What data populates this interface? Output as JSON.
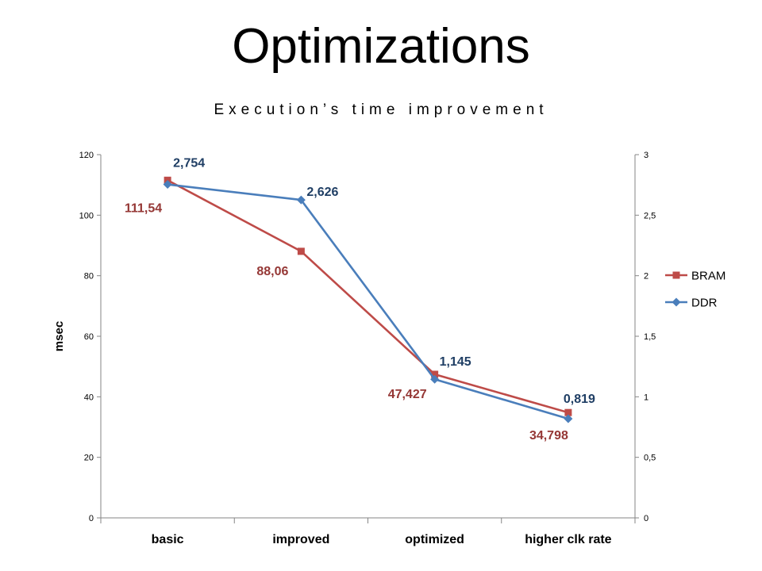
{
  "slide": {
    "title": "Optimizations",
    "subtitle": "Execution’s time improvement"
  },
  "colors": {
    "bram": "#BE4B48",
    "ddr": "#4A7EBB",
    "bram_label": "#953735",
    "ddr_label": "#1F3E64",
    "axis": "#868686"
  },
  "chart_data": {
    "type": "line",
    "categories": [
      "basic",
      "improved",
      "optimized",
      "higher clk rate"
    ],
    "ylabel": "msec",
    "ylim": [
      0,
      120
    ],
    "y_ticks": [
      "0",
      "20",
      "40",
      "60",
      "80",
      "100",
      "120"
    ],
    "y2lim": [
      0,
      3
    ],
    "y2_ticks": [
      "0",
      "0,5",
      "1",
      "1,5",
      "2",
      "2,5",
      "3"
    ],
    "grid": false,
    "legend_position": "right",
    "series": [
      {
        "name": "BRAM",
        "axis": "left",
        "marker": "square",
        "values": [
          111.54,
          88.06,
          47.427,
          34.798
        ],
        "labels": [
          "111,54",
          "88,06",
          "47,427",
          "34,798"
        ]
      },
      {
        "name": "DDR",
        "axis": "right",
        "marker": "diamond",
        "values": [
          2.754,
          2.626,
          1.145,
          0.819
        ],
        "labels": [
          "2,754",
          "2,626",
          "1,145",
          "0,819"
        ]
      }
    ]
  }
}
